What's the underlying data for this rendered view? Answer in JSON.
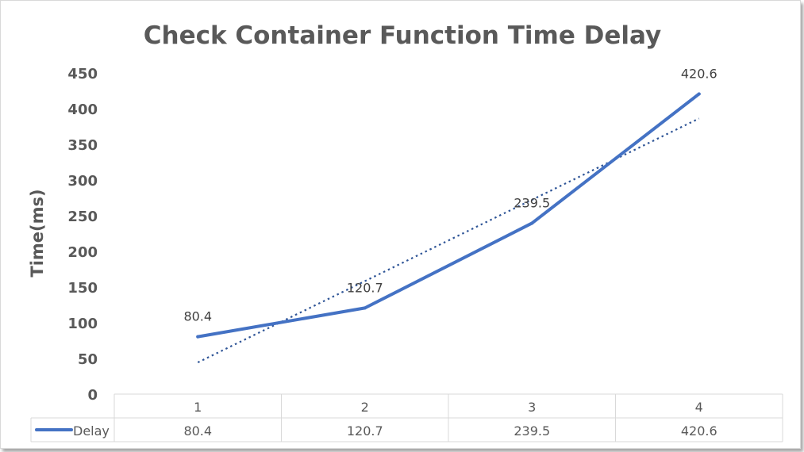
{
  "chart_data": {
    "type": "line",
    "title": "Check Container Function Time Delay",
    "xlabel": "",
    "ylabel": "Time(ms)",
    "categories": [
      "1",
      "2",
      "3",
      "4"
    ],
    "series": [
      {
        "name": "Delay",
        "values": [
          80.4,
          120.7,
          239.5,
          420.6
        ],
        "color": "#4472C4"
      }
    ],
    "data_labels": [
      "80.4",
      "120.7",
      "239.5",
      "420.6"
    ],
    "trendline": {
      "type": "linear",
      "style": "dotted",
      "color": "#2F5597"
    },
    "ylim": [
      0,
      450
    ],
    "yticks": [
      0,
      50,
      100,
      150,
      200,
      250,
      300,
      350,
      400,
      450
    ],
    "grid": false,
    "legend_placement": "data-table",
    "data_table": {
      "row_label": "Delay",
      "values": [
        "80.4",
        "120.7",
        "239.5",
        "420.6"
      ]
    }
  }
}
